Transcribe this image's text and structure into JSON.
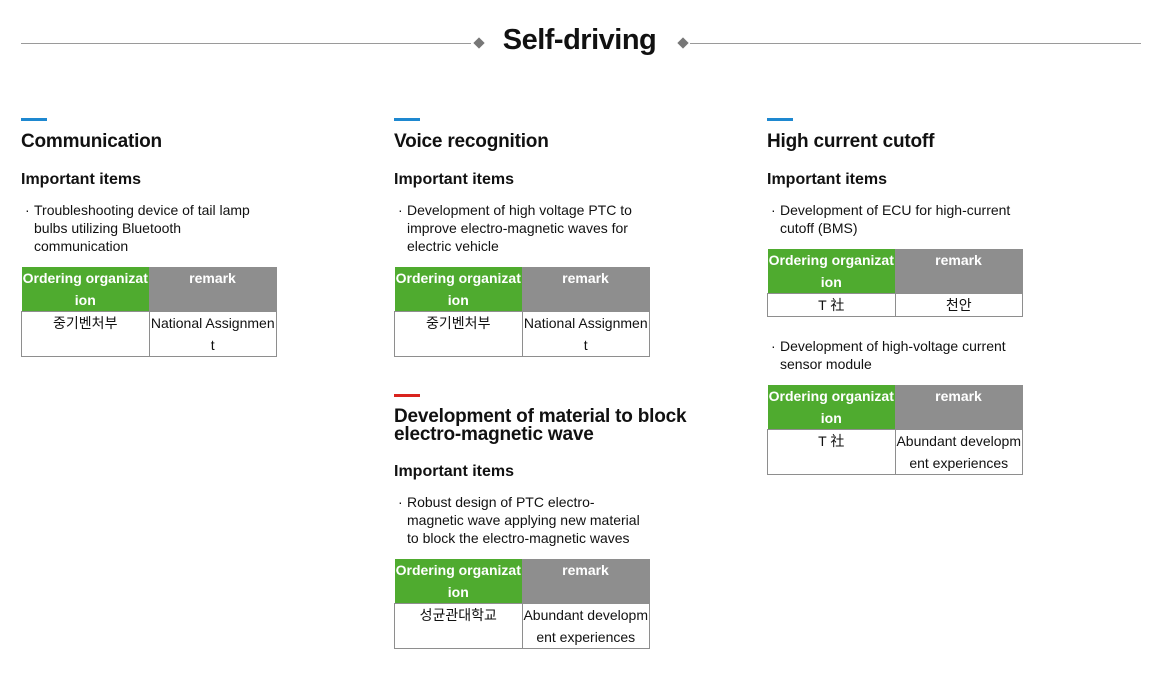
{
  "title": "Self-driving",
  "accent_colors": {
    "blue": "#1e88d0",
    "red": "#d9231e",
    "header_green": "#4fab2f",
    "header_gray": "#8e8e8e"
  },
  "sections": {
    "communication": {
      "title": "Communication",
      "subtitle": "Important items",
      "item": "Troubleshooting device of tail lamp bulbs utilizing Bluetooth communication",
      "table": {
        "header1": "Ordering organization",
        "header2": "remark",
        "cell1": "중기벤처부",
        "cell2": "National Assignment"
      }
    },
    "voice": {
      "title": "Voice recognition",
      "subtitle": "Important items",
      "item": "Development of high voltage PTC to improve electro-magnetic waves for electric vehicle",
      "table": {
        "header1": "Ordering organization",
        "header2": "remark",
        "cell1": "중기벤처부",
        "cell2": "National Assignment"
      }
    },
    "material": {
      "title": "Development of material to block electro-magnetic wave",
      "subtitle": "Important items",
      "item": "Robust design of PTC electro-magnetic wave applying new material to block the electro-magnetic waves",
      "table": {
        "header1": "Ordering organization",
        "header2": "remark",
        "cell1": "성균관대학교",
        "cell2": "Abundant development experiences"
      }
    },
    "cutoff": {
      "title": "High current cutoff",
      "subtitle": "Important items",
      "item1": "Development of ECU for high-current cutoff (BMS)",
      "table1": {
        "header1": "Ordering organization",
        "header2": "remark",
        "cell1": "T 社",
        "cell2": "천안"
      },
      "item2": "Development of high-voltage current sensor module",
      "table2": {
        "header1": "Ordering organization",
        "header2": "remark",
        "cell1": "T 社",
        "cell2": "Abundant development experiences"
      }
    }
  }
}
